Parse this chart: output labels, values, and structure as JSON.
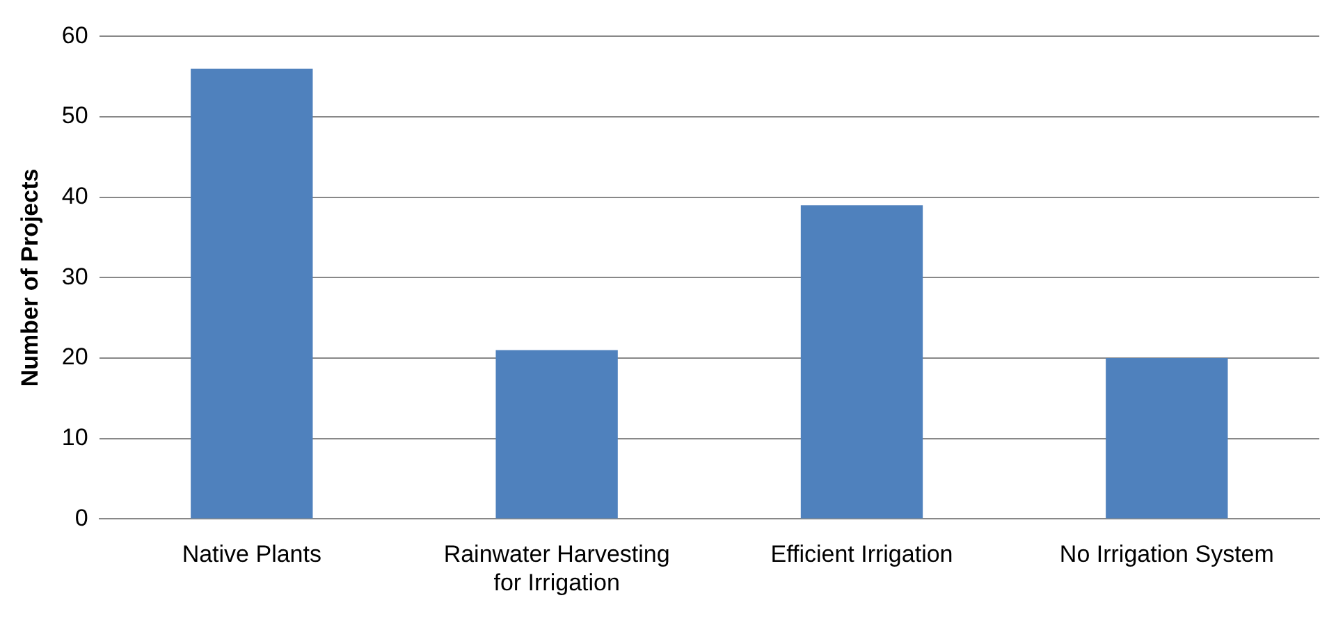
{
  "chart_data": {
    "type": "bar",
    "ylabel": "Number of Projects",
    "categories": [
      "Native Plants",
      "Rainwater Harvesting for Irrigation",
      "Efficient Irrigation",
      "No Irrigation System"
    ],
    "values": [
      56,
      21,
      39,
      20
    ],
    "color": "#4f81bd",
    "ylim": [
      0,
      60
    ],
    "yticks": [
      0,
      10,
      20,
      30,
      40,
      50,
      60
    ],
    "grid": "y"
  }
}
